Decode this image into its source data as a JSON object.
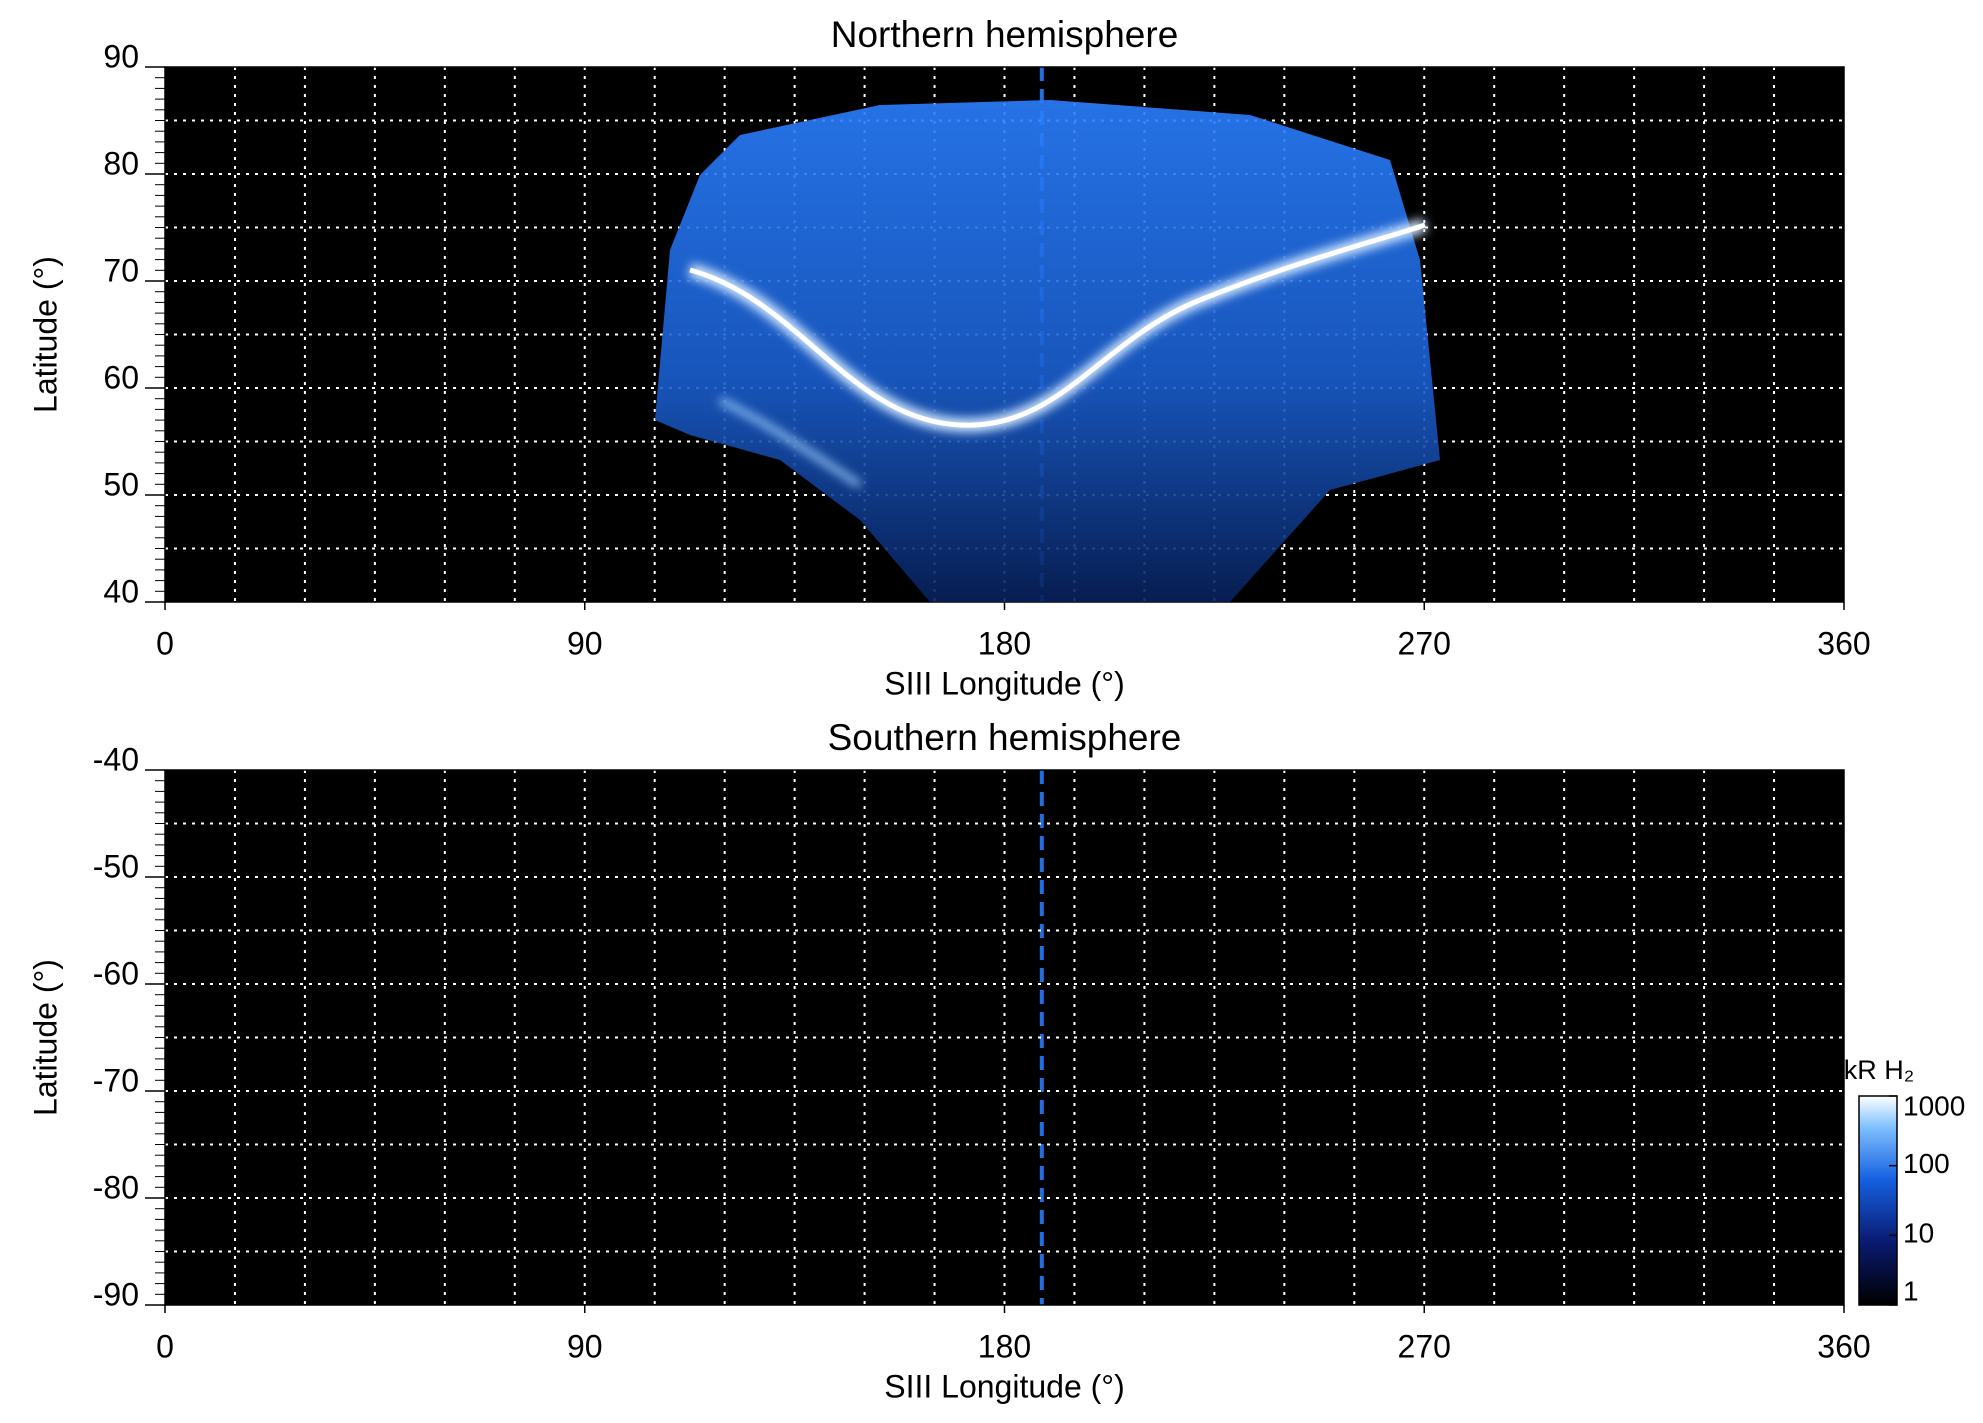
{
  "chart_data": [
    {
      "type": "image",
      "title": "Northern hemisphere",
      "xlabel": "SIII Longitude (°)",
      "ylabel": "Latitude (°)",
      "xlim": [
        0,
        360
      ],
      "ylim": [
        40,
        90
      ],
      "xticks": [
        0,
        90,
        180,
        270,
        360
      ],
      "yticks": [
        40,
        50,
        60,
        70,
        80,
        90
      ],
      "grid": true,
      "grid_step": [
        15,
        5
      ],
      "marker_x": 188,
      "marker_color": "#1f6fe0"
    },
    {
      "type": "image",
      "title": "Southern hemisphere",
      "xlabel": "SIII Longitude (°)",
      "ylabel": "Latitude (°)",
      "xlim": [
        0,
        360
      ],
      "ylim": [
        -90,
        -40
      ],
      "xticks": [
        0,
        90,
        180,
        270,
        360
      ],
      "yticks": [
        -90,
        -80,
        -70,
        -60,
        -50,
        -40
      ],
      "grid": true,
      "grid_step": [
        15,
        5
      ],
      "marker_x": 188,
      "marker_color": "#1f6fe0",
      "colorbar": {
        "label": "kR H₂",
        "log": true,
        "lim": [
          1,
          1000
        ],
        "ticks": [
          1,
          10,
          100,
          1000
        ]
      }
    }
  ]
}
